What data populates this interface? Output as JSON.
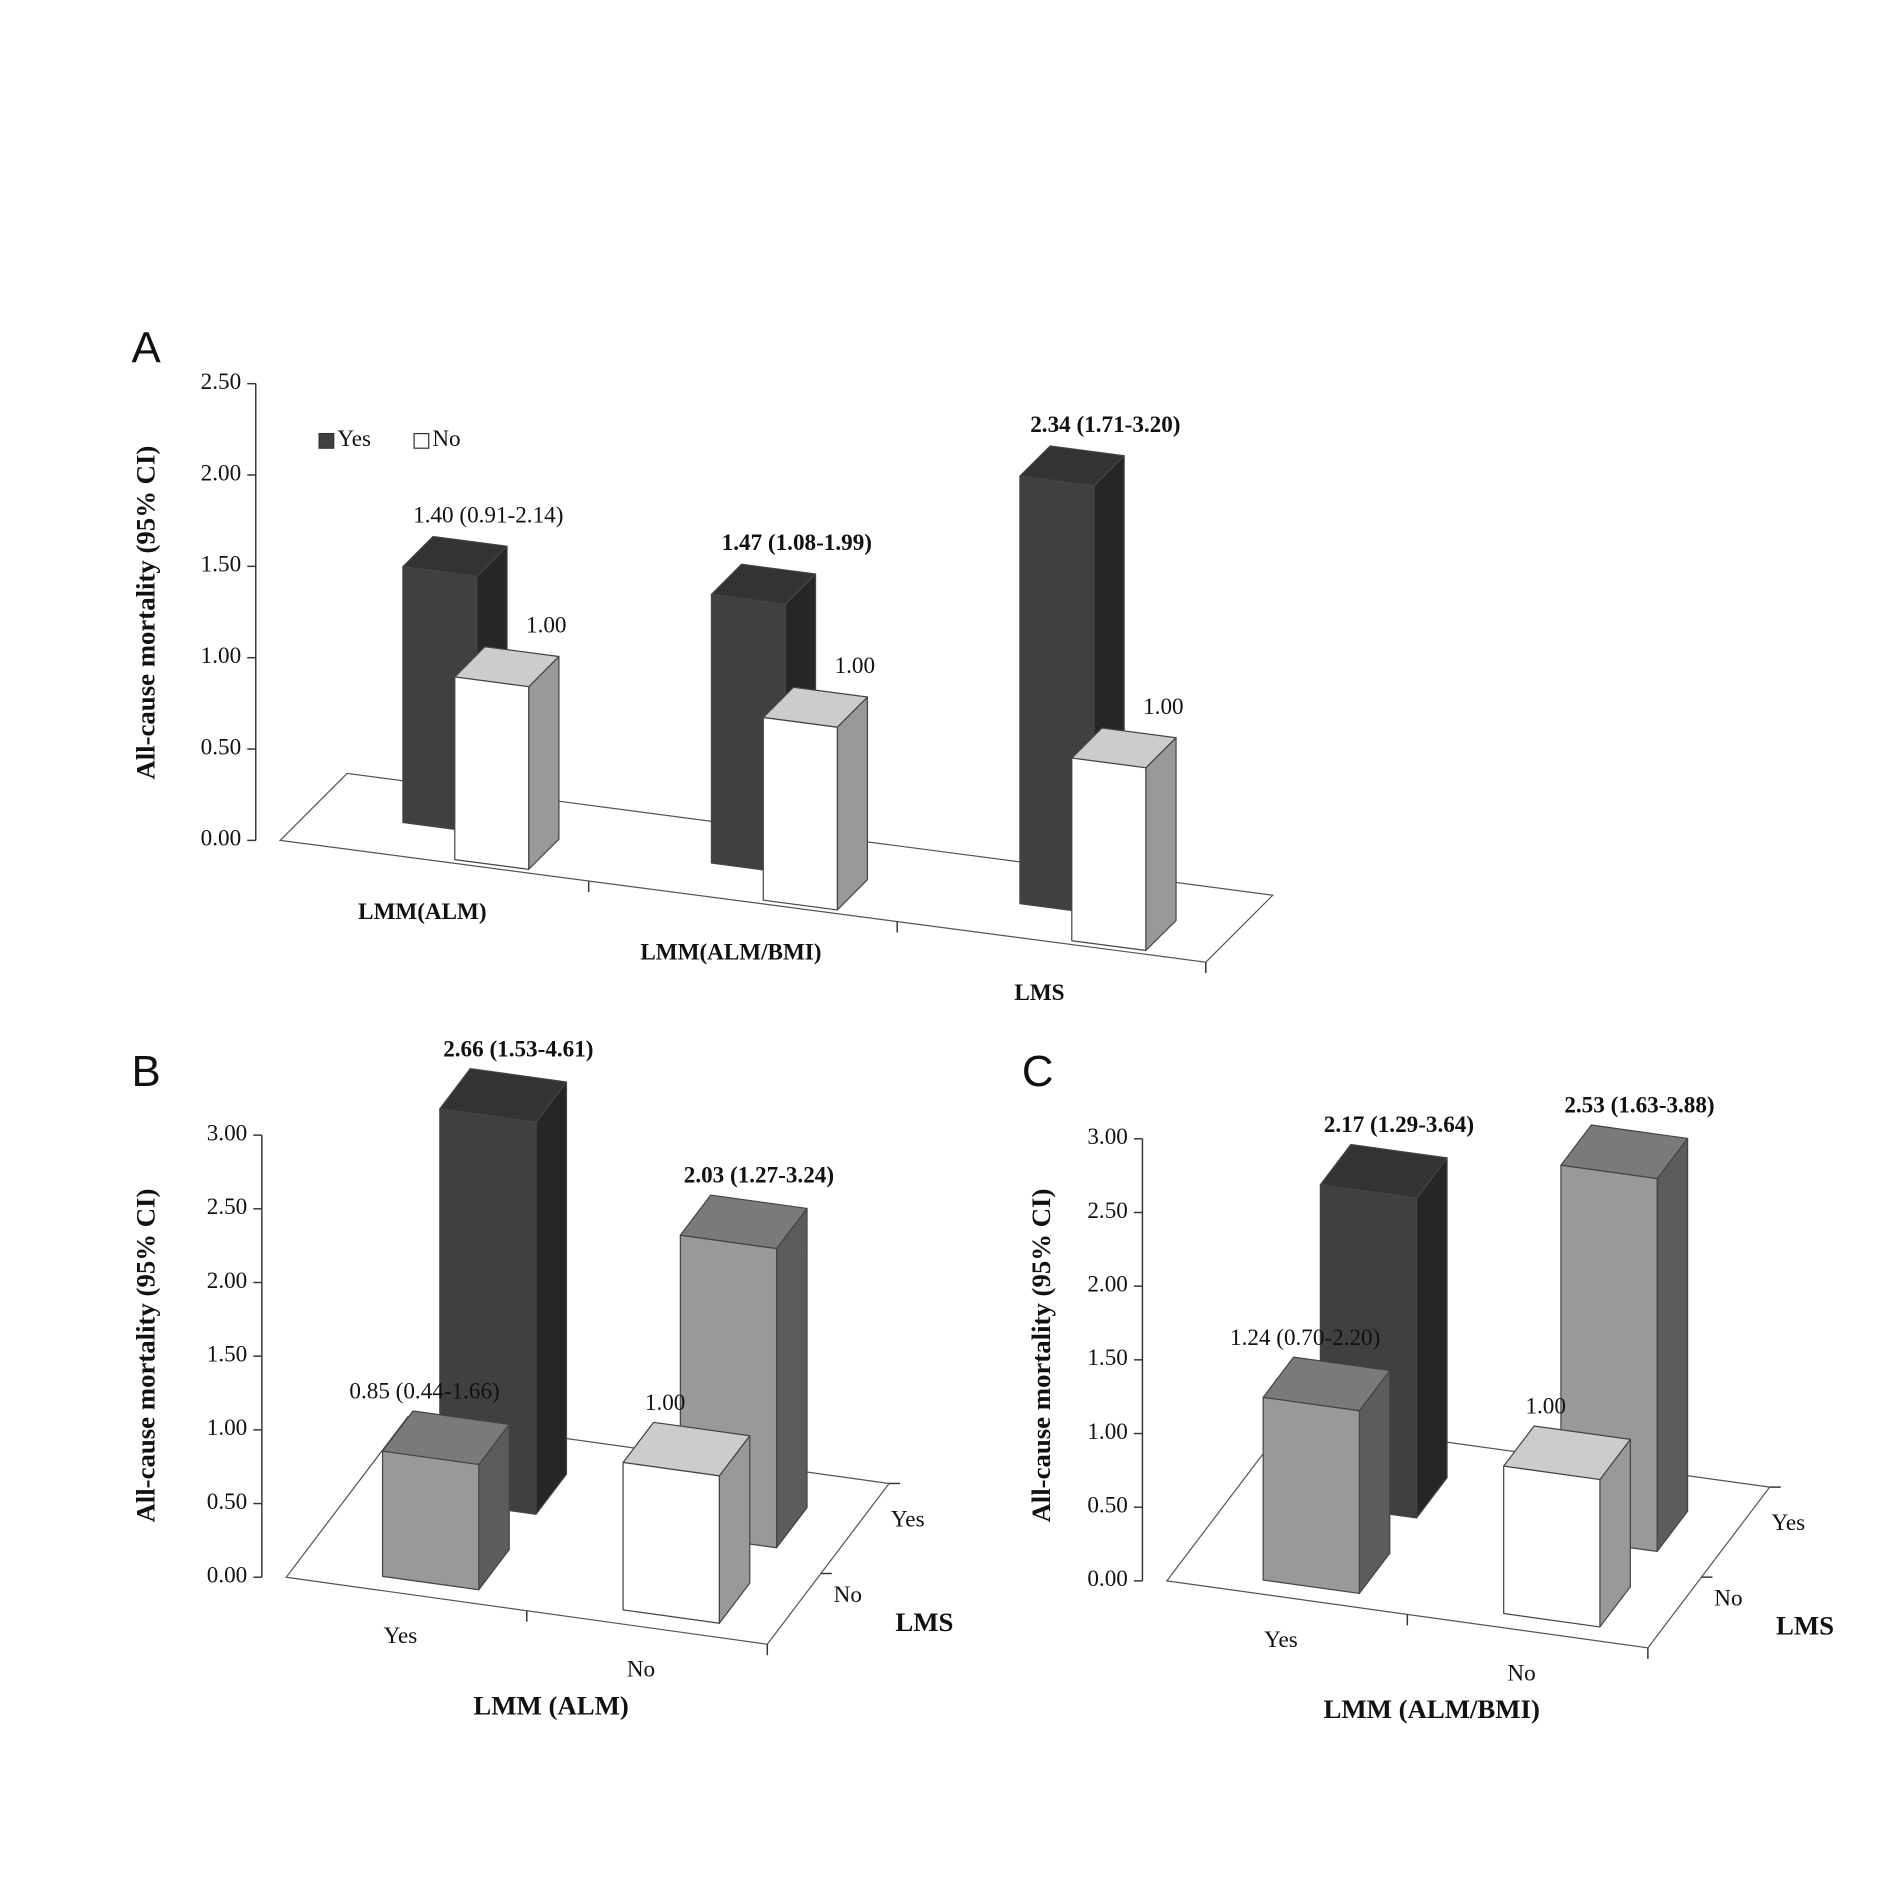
{
  "chart_data": [
    {
      "type": "bar",
      "title": "A",
      "ylabel": "All-cause mortality (95% CI)",
      "categories": [
        "LMM(ALM)",
        "LMM(ALM/BMI)",
        "LMS"
      ],
      "series": [
        {
          "name": "Yes",
          "color": "#404040",
          "values": [
            1.4,
            1.47,
            2.34
          ],
          "value_labels": [
            "1.40 (0.91-2.14)",
            "1.47 (1.08-1.99)",
            "2.34 (1.71-3.20)"
          ],
          "value_labels_bold": [
            false,
            true,
            true
          ]
        },
        {
          "name": "No",
          "color": "#ffffff",
          "values": [
            1.0,
            1.0,
            1.0
          ],
          "value_labels": [
            "1.00",
            "1.00",
            "1.00"
          ],
          "value_labels_bold": [
            false,
            false,
            false
          ]
        }
      ],
      "ylim": [
        0,
        2.5
      ],
      "yticks": [
        {
          "value": 0,
          "label": "0.00"
        },
        {
          "value": 0.5,
          "label": "0.50"
        },
        {
          "value": 1,
          "label": "1.00"
        },
        {
          "value": 1.5,
          "label": "1.50"
        },
        {
          "value": 2,
          "label": "2.00"
        },
        {
          "value": 2.5,
          "label": "2.50"
        }
      ],
      "legend": "upper left"
    },
    {
      "type": "bar",
      "title": "B",
      "ylabel": "All-cause mortality (95% CI)",
      "xlabel": "LMM (ALM)",
      "zlabel": "LMS",
      "categories": [
        "Yes",
        "No"
      ],
      "series": [
        {
          "name": "Yes",
          "colors": [
            "#404040",
            "#999999"
          ],
          "values": [
            2.66,
            2.03
          ],
          "value_labels": [
            "2.66 (1.53-4.61)",
            "2.03 (1.27-3.24)"
          ],
          "value_labels_bold": [
            true,
            true
          ]
        },
        {
          "name": "No",
          "colors": [
            "#999999",
            "#ffffff"
          ],
          "values": [
            0.85,
            1.0
          ],
          "value_labels": [
            "0.85 (0.44-1.66)",
            "1.00"
          ],
          "value_labels_bold": [
            false,
            false
          ]
        }
      ],
      "ylim": [
        0,
        3
      ],
      "yticks": [
        {
          "value": 0,
          "label": "0.00"
        },
        {
          "value": 0.5,
          "label": "0.50"
        },
        {
          "value": 1,
          "label": "1.00"
        },
        {
          "value": 1.5,
          "label": "1.50"
        },
        {
          "value": 2,
          "label": "2.00"
        },
        {
          "value": 2.5,
          "label": "2.50"
        },
        {
          "value": 3,
          "label": "3.00"
        }
      ]
    },
    {
      "type": "bar",
      "title": "C",
      "ylabel": "All-cause mortality (95% CI)",
      "xlabel": "LMM (ALM/BMI)",
      "zlabel": "LMS",
      "categories": [
        "Yes",
        "No"
      ],
      "series": [
        {
          "name": "Yes",
          "colors": [
            "#404040",
            "#999999"
          ],
          "values": [
            2.17,
            2.53
          ],
          "value_labels": [
            "2.17 (1.29-3.64)",
            "2.53 (1.63-3.88)"
          ],
          "value_labels_bold": [
            true,
            true
          ]
        },
        {
          "name": "No",
          "colors": [
            "#999999",
            "#ffffff"
          ],
          "values": [
            1.24,
            1.0
          ],
          "value_labels": [
            "1.24 (0.70-2.20)",
            "1.00"
          ],
          "value_labels_bold": [
            false,
            false
          ]
        }
      ],
      "ylim": [
        0,
        3
      ],
      "yticks": [
        {
          "value": 0,
          "label": "0.00"
        },
        {
          "value": 0.5,
          "label": "0.50"
        },
        {
          "value": 1,
          "label": "1.00"
        },
        {
          "value": 1.5,
          "label": "1.50"
        },
        {
          "value": 2,
          "label": "2.00"
        },
        {
          "value": 2.5,
          "label": "2.50"
        },
        {
          "value": 3,
          "label": "3.00"
        }
      ]
    }
  ]
}
